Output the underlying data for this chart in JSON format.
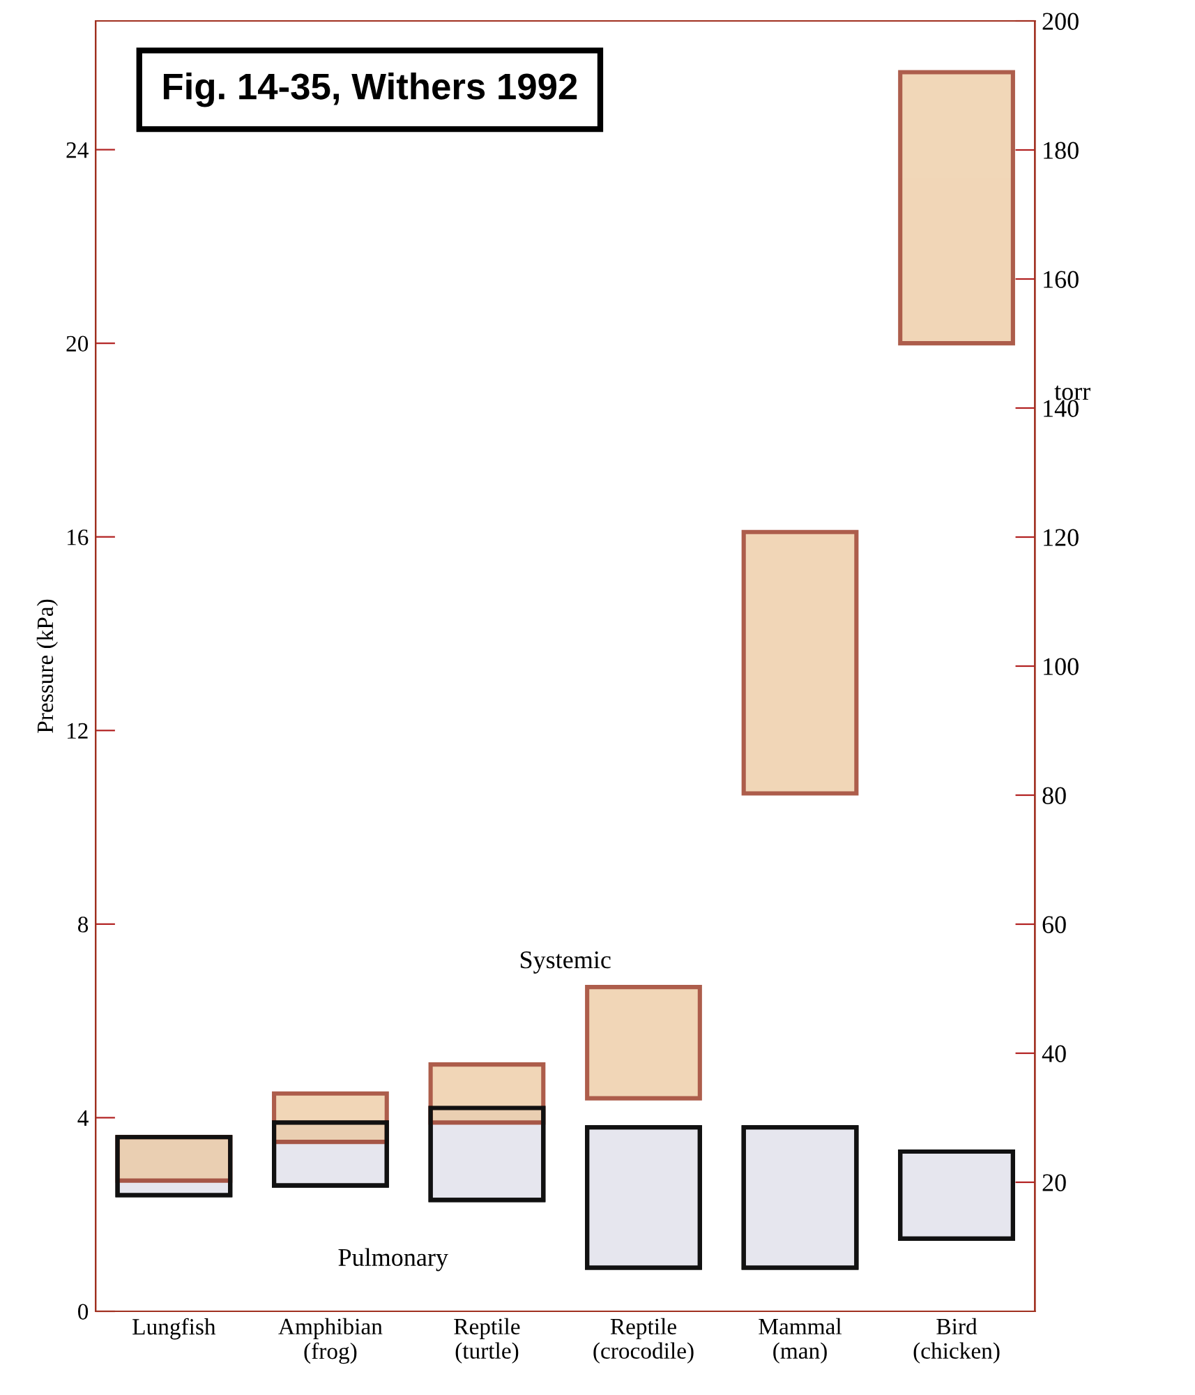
{
  "chart_data": {
    "type": "bar",
    "title": "Fig. 14-35, Withers 1992",
    "ylabel": "Pressure (kPa)",
    "y2label": "torr",
    "categories": [
      "Lungfish",
      "Amphibian\n(frog)",
      "Reptile\n(turtle)",
      "Reptile\n(crocodile)",
      "Mammal\n(man)",
      "Bird\n(chicken)"
    ],
    "series": [
      {
        "name": "Pulmonary",
        "color": "#e6e6ee",
        "base": [
          2.4,
          2.6,
          2.3,
          0.9,
          0.9,
          1.5
        ],
        "values": [
          1.2,
          1.3,
          1.9,
          2.9,
          2.9,
          1.8
        ]
      },
      {
        "name": "Systemic",
        "color": "#ecc69a",
        "base": [
          2.7,
          3.5,
          3.9,
          4.4,
          10.7,
          20.0
        ],
        "values": [
          0.9,
          1.0,
          1.2,
          2.3,
          5.4,
          5.6
        ]
      }
    ],
    "ylim": [
      0,
      26.66
    ],
    "yticks": [
      0,
      4,
      8,
      12,
      16,
      20,
      24
    ],
    "y2lim": [
      0,
      200
    ],
    "y2ticks": [
      20,
      40,
      60,
      80,
      100,
      120,
      140,
      160,
      180,
      200
    ],
    "grid": false,
    "legend": false
  }
}
